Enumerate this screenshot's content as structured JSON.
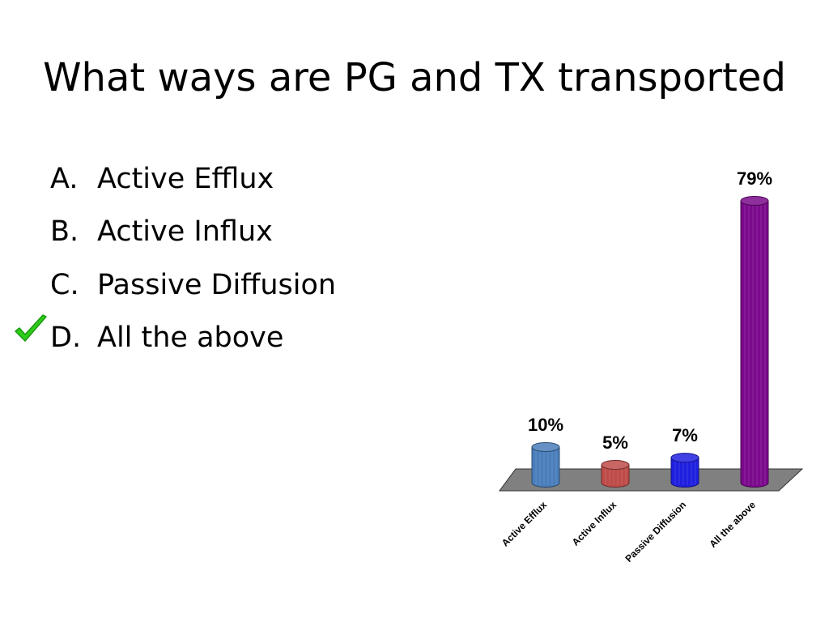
{
  "slide": {
    "title": "What ways are PG and TX transported",
    "options": [
      {
        "letter": "A.",
        "text": "Active Efflux"
      },
      {
        "letter": "B.",
        "text": "Active Influx"
      },
      {
        "letter": "C.",
        "text": "Passive Diffusion"
      },
      {
        "letter": "D.",
        "text": "All the above"
      }
    ],
    "correct_index": 3,
    "check_icon": "checkmark-icon",
    "check_color": "#2ecc1a"
  },
  "chart_data": {
    "type": "bar",
    "categories": [
      "Active Efflux",
      "Active Influx",
      "Passive Diffusion",
      "All the above"
    ],
    "values": [
      10,
      5,
      7,
      79
    ],
    "value_labels": [
      "10%",
      "5%",
      "7%",
      "79%"
    ],
    "colors": [
      "#4a7ebb",
      "#be4b48",
      "#1f1fe0",
      "#7b0a8c"
    ],
    "floor_color": "#808080",
    "title": "",
    "xlabel": "",
    "ylabel": "",
    "ylim": [
      0,
      79
    ],
    "grid": false,
    "legend": "none"
  }
}
